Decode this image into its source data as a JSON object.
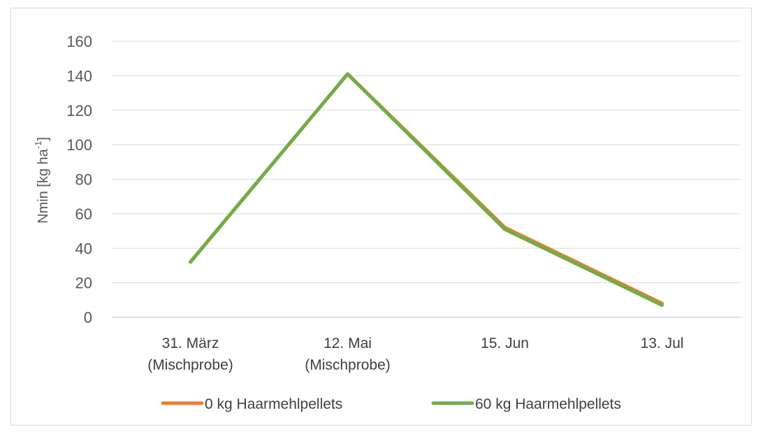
{
  "chart_data": {
    "type": "line",
    "categories": [
      [
        "31. März",
        "(Mischprobe)"
      ],
      [
        "12. Mai",
        "(Mischprobe)"
      ],
      [
        "15. Jun"
      ],
      [
        "13. Jul"
      ]
    ],
    "series": [
      {
        "name": "0 kg Haarmehlpellets",
        "values": [
          32,
          141,
          52,
          8
        ],
        "color": "#ed7d31"
      },
      {
        "name": "60 kg Haarmehlpellets",
        "values": [
          32,
          141,
          51,
          7
        ],
        "color": "#70ad47"
      }
    ],
    "ylabel": {
      "main": "Nmin [kg ha",
      "sup": "-1",
      "end": "]"
    },
    "ylim": [
      0,
      160
    ],
    "yticks": [
      0,
      20,
      40,
      60,
      80,
      100,
      120,
      140,
      160
    ],
    "grid": true,
    "legend": "bottom"
  }
}
